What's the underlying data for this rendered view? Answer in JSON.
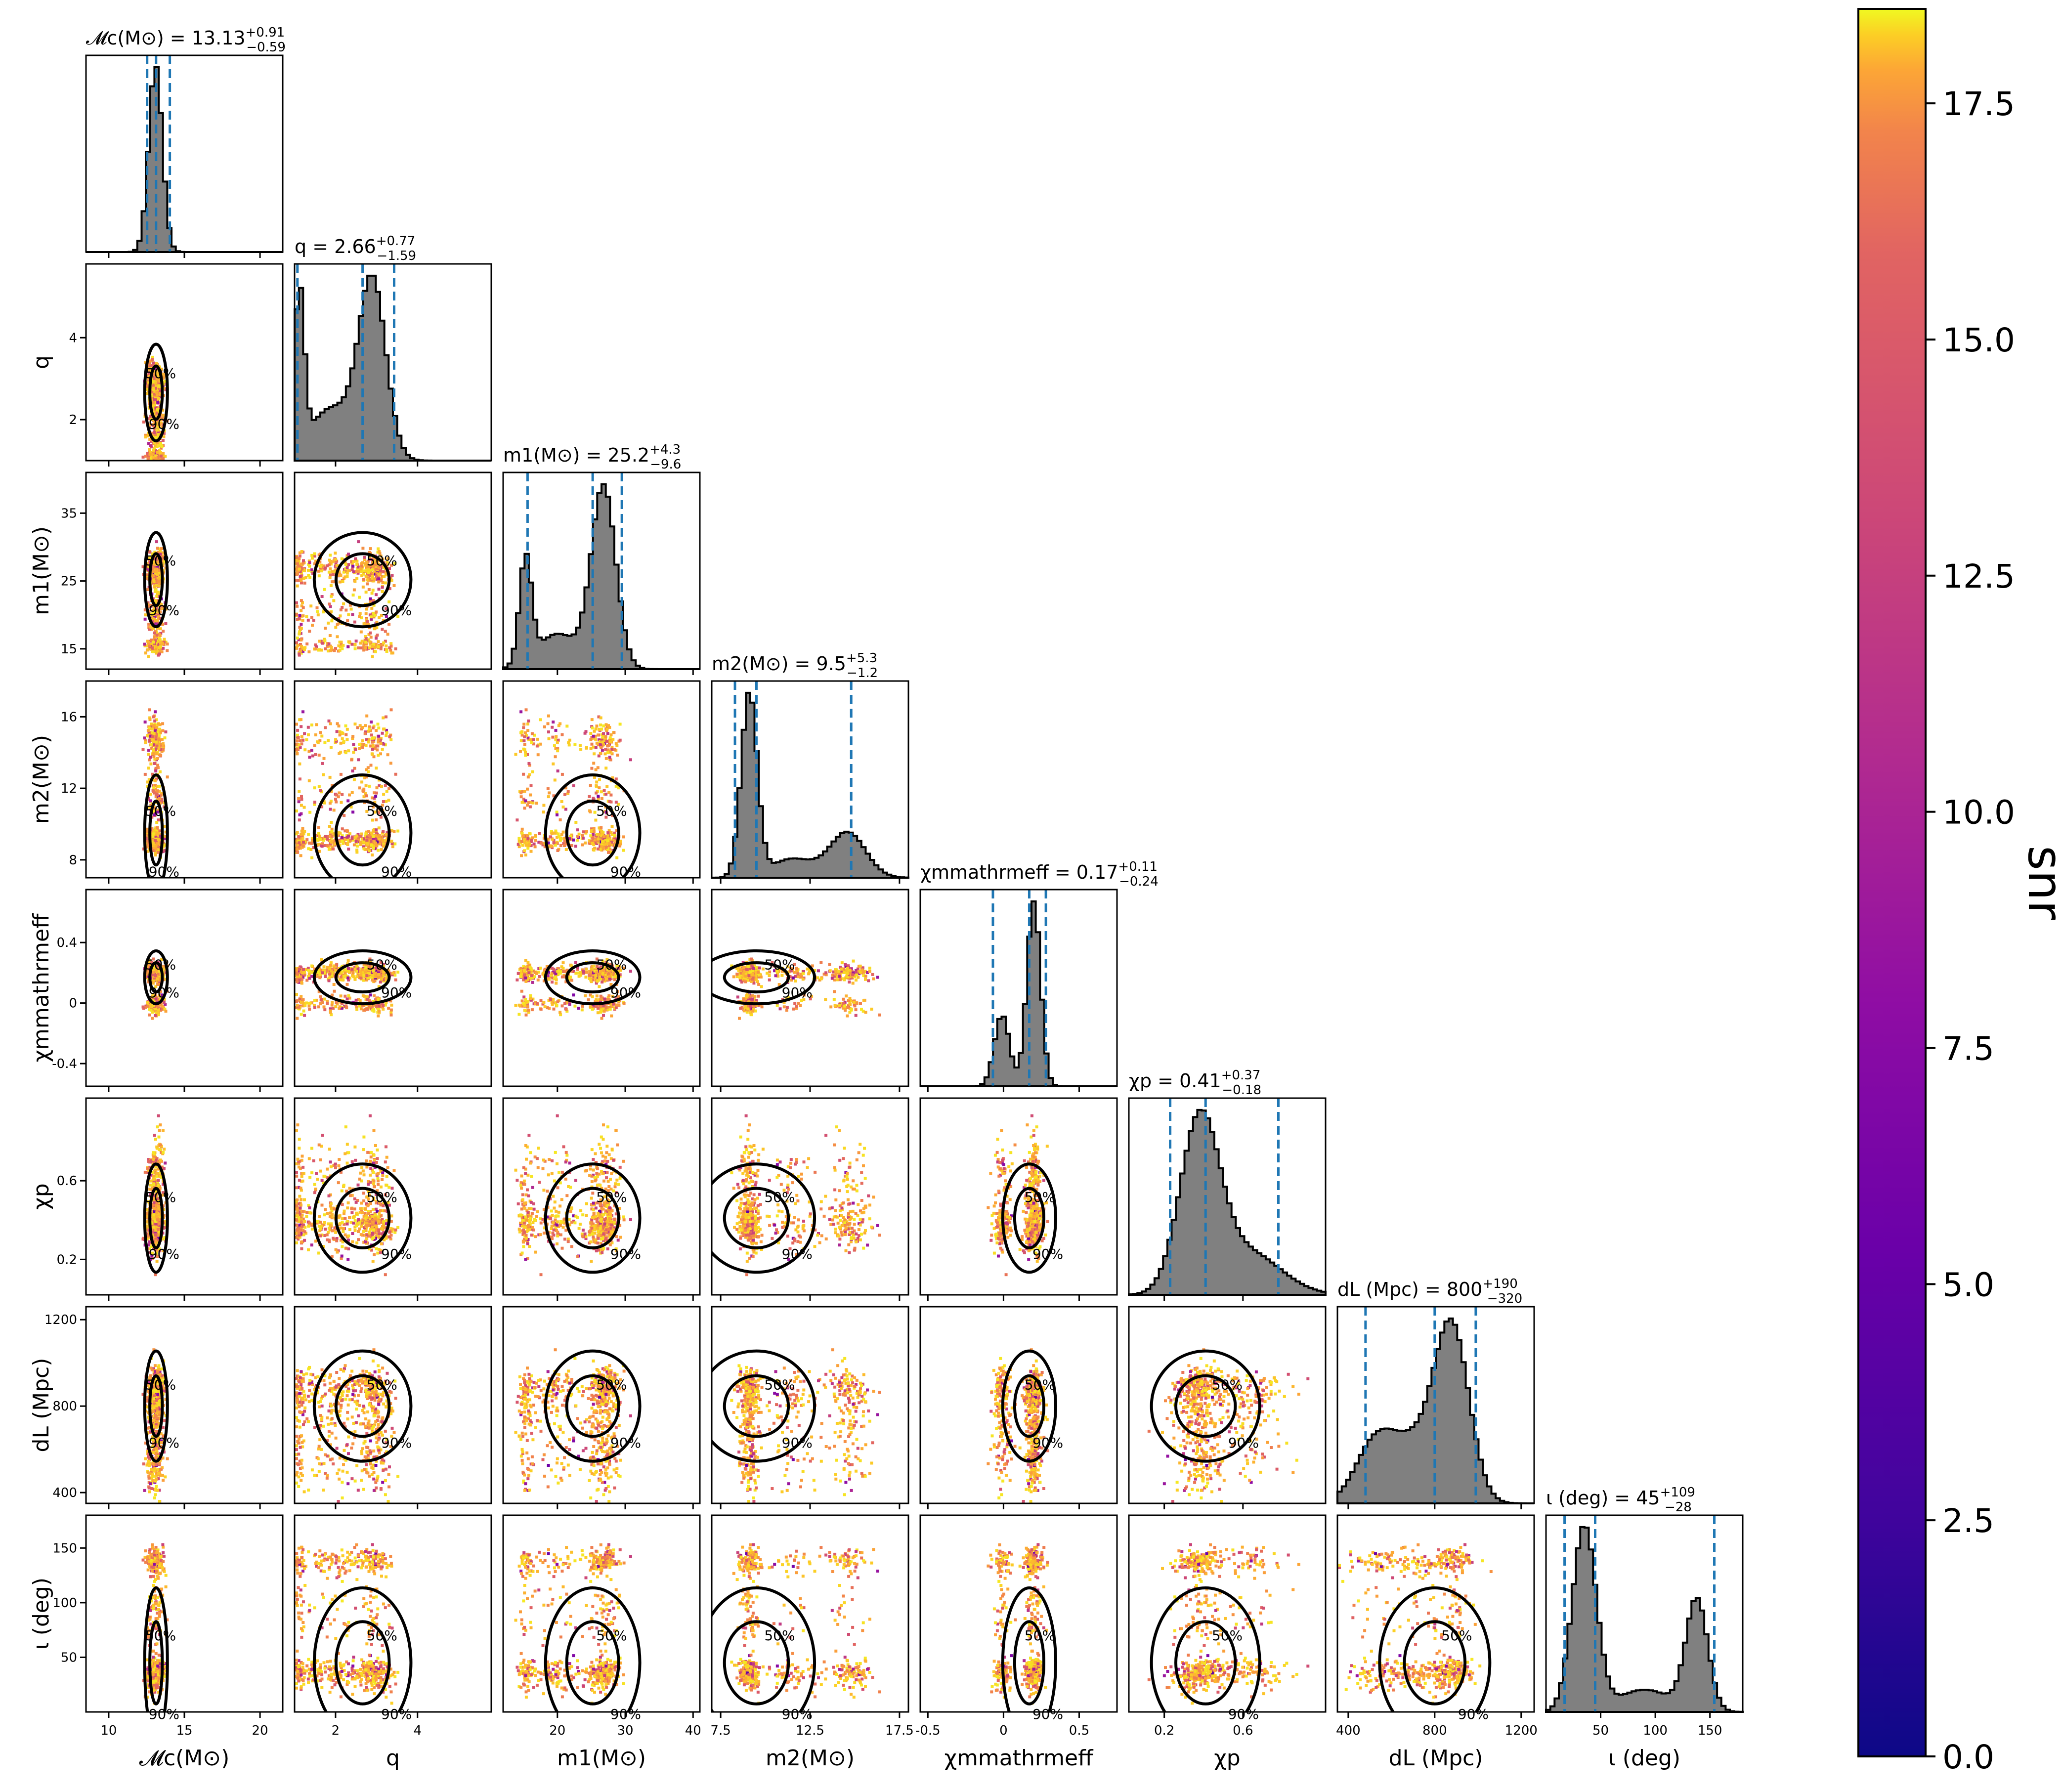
{
  "chart_data": {
    "type": "corner",
    "params": [
      {
        "key": "Mc",
        "label": "𝓜c(M⊙)",
        "range": [
          8.5,
          21.5
        ],
        "ticks": [
          10,
          15,
          20
        ]
      },
      {
        "key": "q",
        "label": "q",
        "range": [
          1.0,
          5.8
        ],
        "ticks": [
          2,
          4
        ]
      },
      {
        "key": "m1",
        "label": "m1(M⊙)",
        "range": [
          12,
          41
        ],
        "ticks": [
          20,
          30,
          40
        ]
      },
      {
        "key": "m2",
        "label": "m2(M⊙)",
        "range": [
          7,
          18
        ],
        "ticks": [
          7.5,
          12.5,
          17.5
        ]
      },
      {
        "key": "chi_eff",
        "label": "χmmathrmeff",
        "range": [
          -0.55,
          0.75
        ],
        "ticks": [
          -0.5,
          0.0,
          0.5
        ]
      },
      {
        "key": "chi_p",
        "label": "χp",
        "range": [
          0.02,
          1.02
        ],
        "ticks": [
          0.2,
          0.6
        ]
      },
      {
        "key": "dL",
        "label": "dL (Mpc)",
        "range": [
          350,
          1260
        ],
        "ticks": [
          400,
          800,
          1200
        ]
      },
      {
        "key": "iota",
        "label": "ι (deg)",
        "range": [
          0,
          180
        ],
        "ticks": [
          50,
          100,
          150
        ]
      }
    ],
    "y_ticks": {
      "q": [
        2,
        4
      ],
      "m1": [
        15,
        25,
        35
      ],
      "m2": [
        8,
        12,
        16
      ],
      "chi_eff": [
        -0.4,
        0.0,
        0.4
      ],
      "chi_p": [
        0.2,
        0.6
      ],
      "dL": [
        400,
        800,
        1200
      ],
      "iota": [
        50,
        100,
        150
      ]
    },
    "titles": [
      {
        "base": "𝓜c(M⊙) = 13.13",
        "sup": "+0.91",
        "sub": "−0.59"
      },
      {
        "base": "q = 2.66",
        "sup": "+0.77",
        "sub": "−1.59"
      },
      {
        "base": "m1(M⊙) = 25.2",
        "sup": "+4.3",
        "sub": "−9.6"
      },
      {
        "base": "m2(M⊙) = 9.5",
        "sup": "+5.3",
        "sub": "−1.2"
      },
      {
        "base": "χmmathrmeff = 0.17",
        "sup": "+0.11",
        "sub": "−0.24"
      },
      {
        "base": "χp = 0.41",
        "sup": "+0.37",
        "sub": "−0.18"
      },
      {
        "base": "dL (Mpc) = 800",
        "sup": "+190",
        "sub": "−320"
      },
      {
        "base": "ι (deg) = 45",
        "sup": "+109",
        "sub": "−28"
      }
    ],
    "quantiles": [
      [
        12.54,
        13.13,
        14.04
      ],
      [
        1.07,
        2.66,
        3.43
      ],
      [
        15.6,
        25.2,
        29.5
      ],
      [
        8.3,
        9.5,
        14.8
      ],
      [
        -0.07,
        0.17,
        0.28
      ],
      [
        0.23,
        0.41,
        0.78
      ],
      [
        480,
        800,
        990
      ],
      [
        17,
        45,
        154
      ]
    ],
    "posterior_modes": {
      "Mc": [
        {
          "w": 1.0,
          "mu": 13.1,
          "sd": 0.45
        }
      ],
      "q": [
        {
          "w": 0.18,
          "mu": 1.12,
          "sd": 0.12
        },
        {
          "w": 0.27,
          "mu": 1.9,
          "sd": 0.55
        },
        {
          "w": 0.55,
          "mu": 2.9,
          "sd": 0.33
        }
      ],
      "m1": [
        {
          "w": 0.18,
          "mu": 15.3,
          "sd": 0.9
        },
        {
          "w": 0.2,
          "mu": 20,
          "sd": 3
        },
        {
          "w": 0.62,
          "mu": 26.8,
          "sd": 1.8
        }
      ],
      "m2": [
        {
          "w": 0.55,
          "mu": 9.1,
          "sd": 0.45
        },
        {
          "w": 0.15,
          "mu": 11.5,
          "sd": 1.2
        },
        {
          "w": 0.3,
          "mu": 14.6,
          "sd": 1.0
        }
      ],
      "chi_eff": [
        {
          "w": 0.3,
          "mu": -0.01,
          "sd": 0.05
        },
        {
          "w": 0.7,
          "mu": 0.2,
          "sd": 0.045
        }
      ],
      "chi_p": [
        {
          "w": 0.7,
          "mu": 0.38,
          "sd": 0.1
        },
        {
          "w": 0.3,
          "mu": 0.62,
          "sd": 0.17
        }
      ],
      "dL": [
        {
          "w": 0.2,
          "mu": 520,
          "sd": 90
        },
        {
          "w": 0.25,
          "mu": 700,
          "sd": 110
        },
        {
          "w": 0.55,
          "mu": 880,
          "sd": 80
        }
      ],
      "iota": [
        {
          "w": 0.55,
          "mu": 35,
          "sd": 11
        },
        {
          "w": 0.15,
          "mu": 90,
          "sd": 25
        },
        {
          "w": 0.3,
          "mu": 138,
          "sd": 10
        }
      ]
    },
    "contour_levels": [
      "50%",
      "90%"
    ],
    "colorbar": {
      "label": "snr",
      "range": [
        0,
        18.5
      ],
      "ticks": [
        "0.0",
        "2.5",
        "5.0",
        "7.5",
        "10.0",
        "12.5",
        "15.0",
        "17.5"
      ],
      "colormap": "plasma"
    },
    "colors": {
      "hist_fill": "#808080",
      "quantile_line": "#1f77b4",
      "contour": "#000000"
    }
  }
}
